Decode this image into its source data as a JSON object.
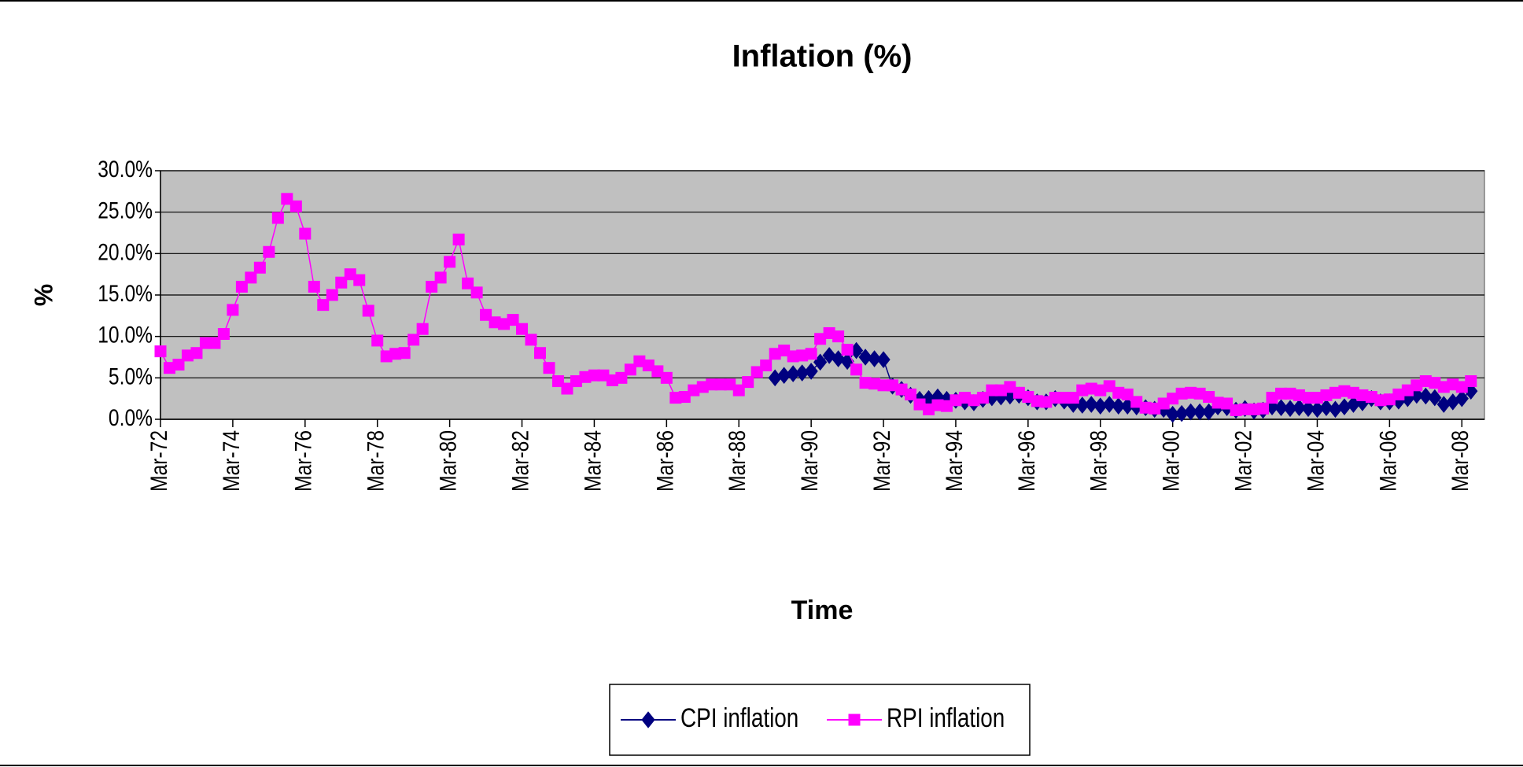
{
  "chart_data": {
    "type": "line",
    "title": "Inflation (%)",
    "x_label": "Time",
    "y_label": "%",
    "categories": [
      "Mar-72",
      null,
      null,
      null,
      null,
      null,
      null,
      null,
      "Mar-74",
      null,
      null,
      null,
      null,
      null,
      null,
      null,
      "Mar-76",
      null,
      null,
      null,
      null,
      null,
      null,
      null,
      "Mar-78",
      null,
      null,
      null,
      null,
      null,
      null,
      null,
      "Mar-80",
      null,
      null,
      null,
      null,
      null,
      null,
      null,
      "Mar-82",
      null,
      null,
      null,
      null,
      null,
      null,
      null,
      "Mar-84",
      null,
      null,
      null,
      null,
      null,
      null,
      null,
      "Mar-86",
      null,
      null,
      null,
      null,
      null,
      null,
      null,
      "Mar-88",
      null,
      null,
      null,
      null,
      null,
      null,
      null,
      "Mar-90",
      null,
      null,
      null,
      null,
      null,
      null,
      null,
      "Mar-92",
      null,
      null,
      null,
      null,
      null,
      null,
      null,
      "Mar-94",
      null,
      null,
      null,
      null,
      null,
      null,
      null,
      "Mar-96",
      null,
      null,
      null,
      null,
      null,
      null,
      null,
      "Mar-98",
      null,
      null,
      null,
      null,
      null,
      null,
      null,
      "Mar-00",
      null,
      null,
      null,
      null,
      null,
      null,
      null,
      "Mar-02",
      null,
      null,
      null,
      null,
      null,
      null,
      null,
      "Mar-04",
      null,
      null,
      null,
      null,
      null,
      null,
      null,
      "Mar-06",
      null,
      null,
      null,
      null,
      null,
      null,
      null,
      "Mar-08",
      null
    ],
    "series": [
      {
        "name": "CPI inflation",
        "color": "#000080",
        "marker": "diamond",
        "values": [
          null,
          null,
          null,
          null,
          null,
          null,
          null,
          null,
          null,
          null,
          null,
          null,
          null,
          null,
          null,
          null,
          null,
          null,
          null,
          null,
          null,
          null,
          null,
          null,
          null,
          null,
          null,
          null,
          null,
          null,
          null,
          null,
          null,
          null,
          null,
          null,
          null,
          null,
          null,
          null,
          null,
          null,
          null,
          null,
          null,
          null,
          null,
          null,
          null,
          null,
          null,
          null,
          null,
          null,
          null,
          null,
          null,
          null,
          null,
          null,
          null,
          null,
          null,
          null,
          null,
          null,
          null,
          null,
          5.0,
          5.3,
          5.5,
          5.6,
          5.8,
          6.9,
          7.7,
          7.3,
          7.0,
          8.3,
          7.5,
          7.3,
          7.2,
          4.0,
          3.6,
          2.9,
          2.4,
          2.5,
          2.7,
          2.4,
          2.3,
          2.1,
          2.0,
          2.4,
          2.6,
          2.7,
          2.8,
          2.9,
          2.6,
          2.1,
          2.1,
          2.5,
          2.2,
          1.8,
          1.7,
          1.8,
          1.6,
          1.8,
          1.6,
          1.6,
          1.5,
          1.4,
          1.2,
          1.2,
          0.6,
          0.7,
          0.9,
          0.9,
          0.9,
          1.5,
          1.4,
          1.1,
          1.3,
          1.0,
          1.1,
          1.5,
          1.4,
          1.3,
          1.4,
          1.3,
          1.2,
          1.4,
          1.2,
          1.5,
          1.8,
          2.0,
          2.5,
          2.1,
          2.1,
          2.2,
          2.5,
          2.9,
          2.8,
          2.6,
          1.8,
          2.1,
          2.5,
          3.4
        ]
      },
      {
        "name": "RPI inflation",
        "color": "#ff00ff",
        "marker": "square",
        "values": [
          8.2,
          6.2,
          6.6,
          7.7,
          8.0,
          9.2,
          9.2,
          10.3,
          13.2,
          16.0,
          17.1,
          18.3,
          20.2,
          24.3,
          26.6,
          25.7,
          22.4,
          16.0,
          13.8,
          15.0,
          16.5,
          17.5,
          16.8,
          13.1,
          9.5,
          7.6,
          7.9,
          8.0,
          9.6,
          10.9,
          16.0,
          17.1,
          19.0,
          21.7,
          16.4,
          15.3,
          12.6,
          11.7,
          11.5,
          12.0,
          10.9,
          9.6,
          8.0,
          6.2,
          4.6,
          3.7,
          4.6,
          5.1,
          5.3,
          5.3,
          4.7,
          5.0,
          6.0,
          7.0,
          6.5,
          5.8,
          5.0,
          2.6,
          2.7,
          3.5,
          3.9,
          4.2,
          4.2,
          4.2,
          3.5,
          4.5,
          5.7,
          6.5,
          7.9,
          8.3,
          7.6,
          7.7,
          7.9,
          9.7,
          10.4,
          10.0,
          8.4,
          6.0,
          4.4,
          4.3,
          4.1,
          4.1,
          3.6,
          3.0,
          1.8,
          1.2,
          1.7,
          1.6,
          2.3,
          2.6,
          2.3,
          2.6,
          3.5,
          3.5,
          3.9,
          3.2,
          2.7,
          2.2,
          2.1,
          2.6,
          2.6,
          2.6,
          3.5,
          3.7,
          3.5,
          4.0,
          3.2,
          3.0,
          2.1,
          1.4,
          1.3,
          1.9,
          2.5,
          3.1,
          3.2,
          3.1,
          2.7,
          2.0,
          1.9,
          1.1,
          1.2,
          1.2,
          1.3,
          2.6,
          3.1,
          3.1,
          2.9,
          2.6,
          2.6,
          2.9,
          3.2,
          3.4,
          3.2,
          2.9,
          2.7,
          2.3,
          2.4,
          3.0,
          3.5,
          4.1,
          4.6,
          4.4,
          3.9,
          4.2,
          3.9,
          4.6
        ]
      }
    ],
    "ylim": [
      0,
      30
    ],
    "yticks": [
      {
        "value": 0,
        "label": "0.0%"
      },
      {
        "value": 5,
        "label": "5.0%"
      },
      {
        "value": 10,
        "label": "10.0%"
      },
      {
        "value": 15,
        "label": "15.0%"
      },
      {
        "value": 20,
        "label": "20.0%"
      },
      {
        "value": 25,
        "label": "25.0%"
      },
      {
        "value": 30,
        "label": "30.0%"
      }
    ],
    "grid": true,
    "plot_background": "#c0c0c0",
    "legend": "bottom"
  }
}
